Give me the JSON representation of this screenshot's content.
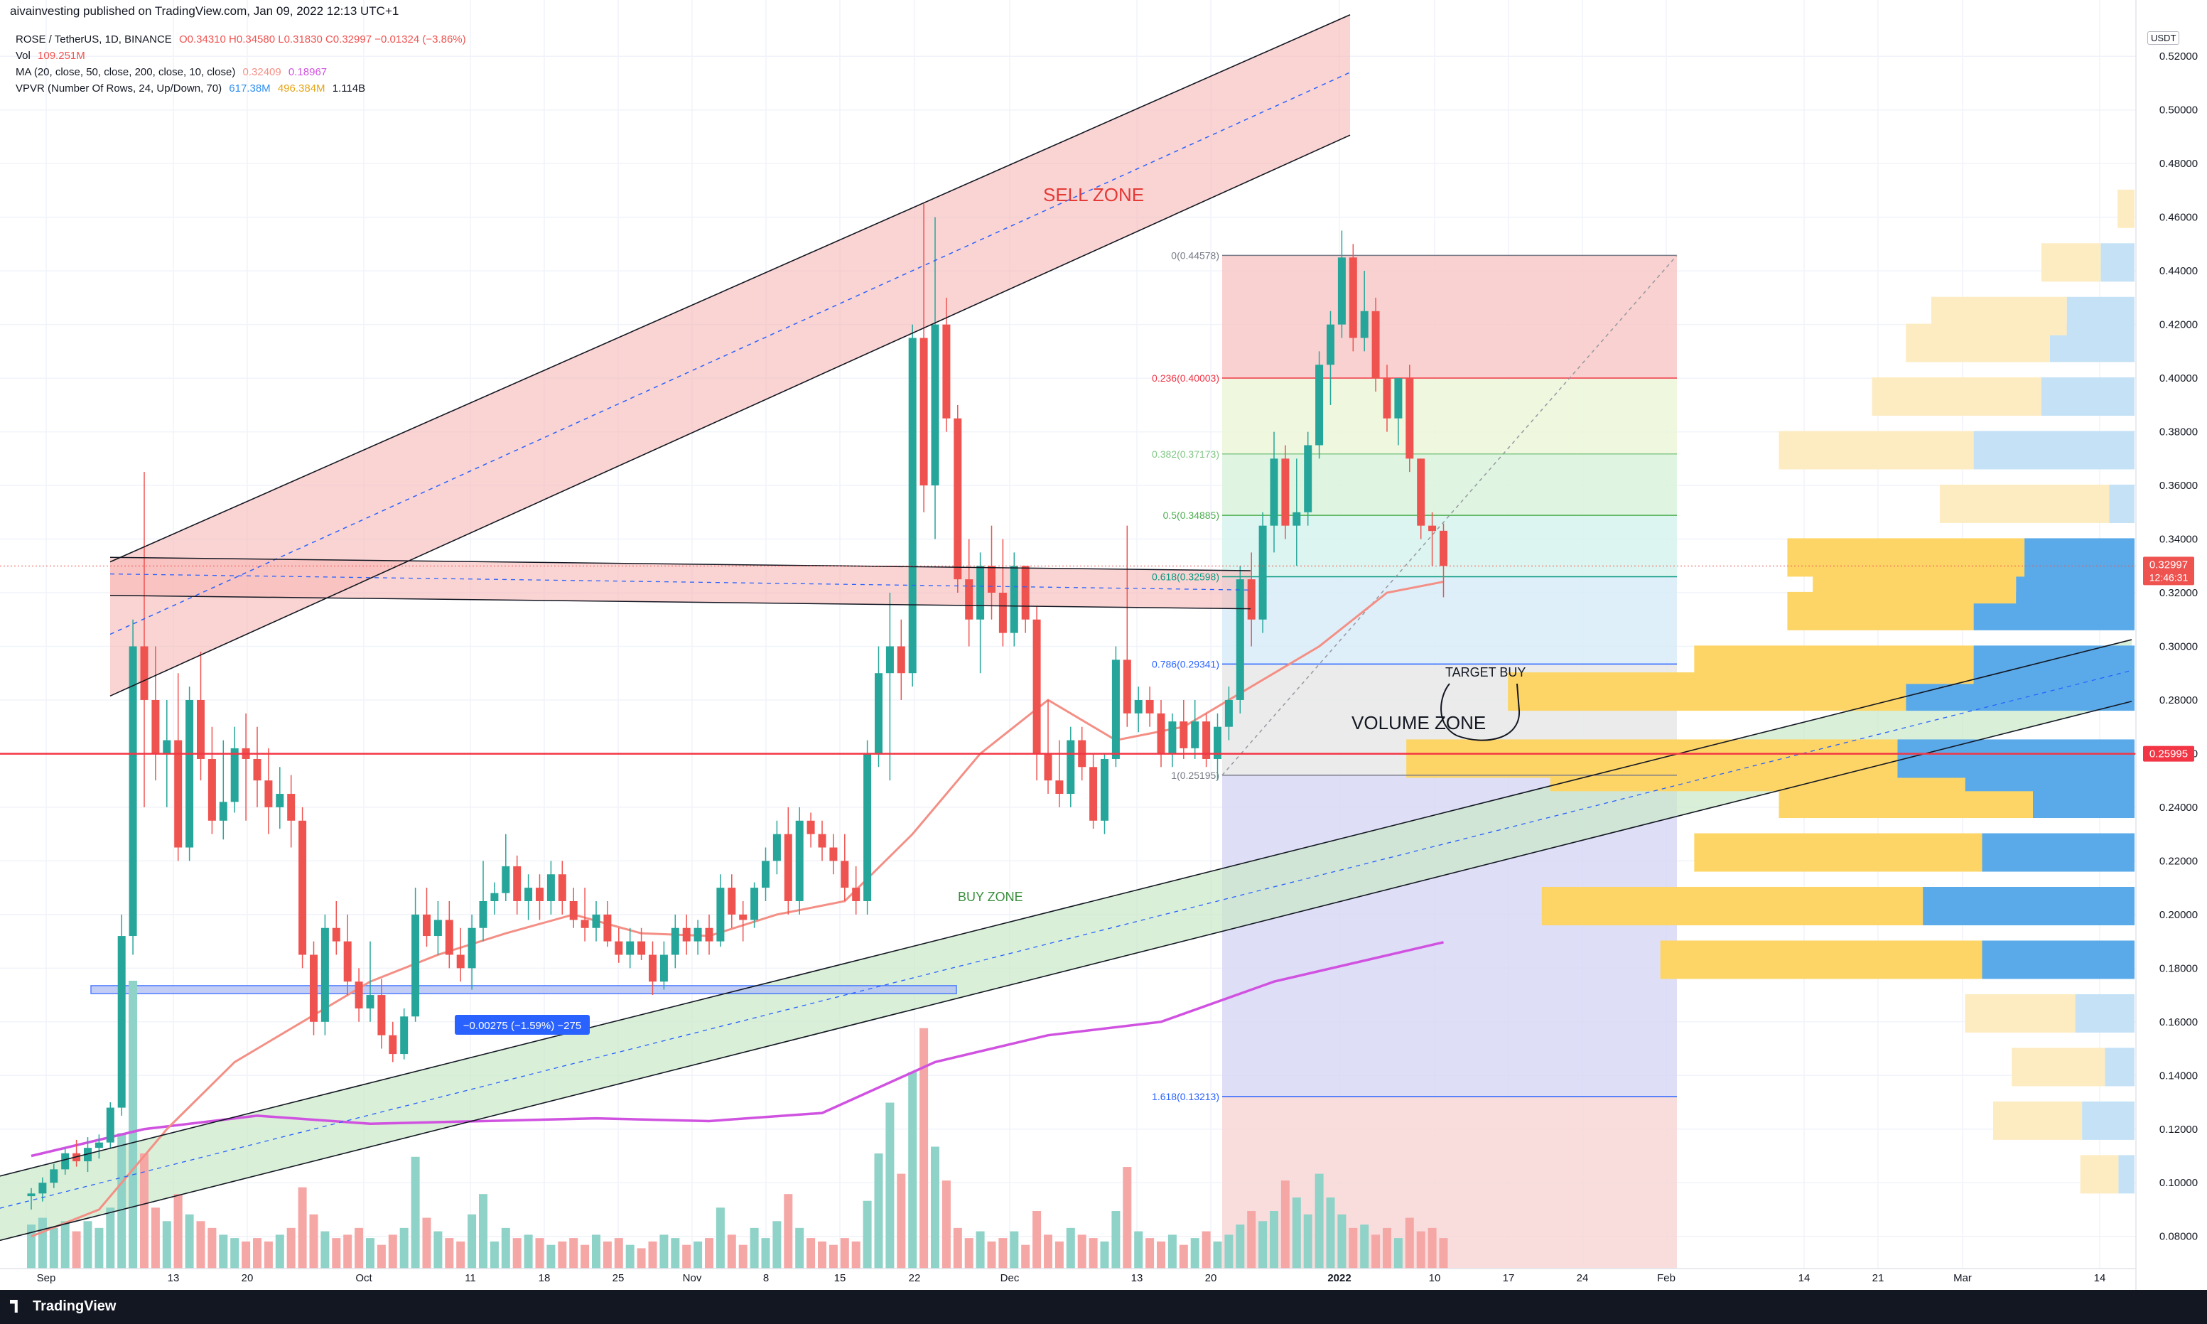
{
  "header": {
    "published": "aivainvesting published on TradingView.com, Jan 09, 2022 12:13 UTC+1"
  },
  "legend": {
    "symbol": "ROSE / TetherUS, 1D, BINANCE",
    "ohlc": "O0.34310  H0.34580  L0.31830  C0.32997  −0.01324 (−3.86%)",
    "vol_label": "Vol",
    "vol_value": "109.251M",
    "ma_label": "MA (20, close, 50, close, 200, close, 10, close)",
    "ma_v1": "0.32409",
    "ma_v2": "0.18967",
    "vpvr_label": "VPVR (Number Of Rows, 24, Up/Down, 70)",
    "vpvr_v1": "617.38M",
    "vpvr_v2": "496.384M",
    "vpvr_v3": "1.114B"
  },
  "currency": "USDT",
  "footer": {
    "brand": "TradingView"
  },
  "chart_data": {
    "type": "candlestick",
    "y_range": [
      0.068,
      0.541
    ],
    "price_ticks": [
      "0.08000",
      "0.10000",
      "0.12000",
      "0.14000",
      "0.16000",
      "0.18000",
      "0.20000",
      "0.22000",
      "0.24000",
      "0.26000",
      "0.28000",
      "0.30000",
      "0.32000",
      "0.34000",
      "0.36000",
      "0.38000",
      "0.40000",
      "0.42000",
      "0.44000",
      "0.46000",
      "0.48000",
      "0.50000",
      "0.52000"
    ],
    "time_labels": [
      "Sep",
      "13",
      "20",
      "Oct",
      "11",
      "18",
      "25",
      "Nov",
      "8",
      "15",
      "22",
      "Dec",
      "13",
      "20",
      "2022",
      "10",
      "17",
      "24",
      "Feb",
      "14",
      "21",
      "Mar",
      "14"
    ],
    "last_price": {
      "value": 0.32997,
      "label": "0.32997",
      "countdown": "12:46:31",
      "color": "#ef5350"
    },
    "hline": {
      "value": 0.25995,
      "label": "0.25995",
      "color": "#f23645"
    },
    "candles": [
      [
        0.095,
        0.098,
        0.09,
        0.096
      ],
      [
        0.096,
        0.102,
        0.093,
        0.1
      ],
      [
        0.1,
        0.107,
        0.098,
        0.105
      ],
      [
        0.105,
        0.113,
        0.103,
        0.111
      ],
      [
        0.111,
        0.116,
        0.106,
        0.108
      ],
      [
        0.108,
        0.117,
        0.104,
        0.113
      ],
      [
        0.113,
        0.118,
        0.109,
        0.115
      ],
      [
        0.115,
        0.13,
        0.113,
        0.128
      ],
      [
        0.128,
        0.2,
        0.125,
        0.192
      ],
      [
        0.192,
        0.31,
        0.185,
        0.3
      ],
      [
        0.3,
        0.365,
        0.24,
        0.28
      ],
      [
        0.28,
        0.3,
        0.25,
        0.26
      ],
      [
        0.26,
        0.28,
        0.24,
        0.265
      ],
      [
        0.265,
        0.29,
        0.22,
        0.225
      ],
      [
        0.225,
        0.285,
        0.22,
        0.28
      ],
      [
        0.28,
        0.298,
        0.25,
        0.258
      ],
      [
        0.258,
        0.27,
        0.23,
        0.235
      ],
      [
        0.235,
        0.265,
        0.228,
        0.242
      ],
      [
        0.242,
        0.27,
        0.238,
        0.262
      ],
      [
        0.262,
        0.275,
        0.235,
        0.258
      ],
      [
        0.258,
        0.27,
        0.24,
        0.25
      ],
      [
        0.25,
        0.262,
        0.23,
        0.24
      ],
      [
        0.24,
        0.255,
        0.232,
        0.245
      ],
      [
        0.245,
        0.252,
        0.225,
        0.235
      ],
      [
        0.235,
        0.24,
        0.18,
        0.185
      ],
      [
        0.185,
        0.19,
        0.155,
        0.16
      ],
      [
        0.16,
        0.2,
        0.155,
        0.195
      ],
      [
        0.195,
        0.205,
        0.185,
        0.19
      ],
      [
        0.19,
        0.2,
        0.17,
        0.175
      ],
      [
        0.175,
        0.18,
        0.16,
        0.165
      ],
      [
        0.165,
        0.19,
        0.16,
        0.17
      ],
      [
        0.17,
        0.176,
        0.15,
        0.155
      ],
      [
        0.155,
        0.16,
        0.145,
        0.148
      ],
      [
        0.148,
        0.165,
        0.146,
        0.162
      ],
      [
        0.162,
        0.21,
        0.16,
        0.2
      ],
      [
        0.2,
        0.21,
        0.188,
        0.192
      ],
      [
        0.192,
        0.205,
        0.185,
        0.198
      ],
      [
        0.198,
        0.205,
        0.18,
        0.185
      ],
      [
        0.185,
        0.195,
        0.175,
        0.18
      ],
      [
        0.18,
        0.2,
        0.172,
        0.195
      ],
      [
        0.195,
        0.22,
        0.19,
        0.205
      ],
      [
        0.205,
        0.212,
        0.2,
        0.208
      ],
      [
        0.208,
        0.23,
        0.205,
        0.218
      ],
      [
        0.218,
        0.222,
        0.2,
        0.205
      ],
      [
        0.205,
        0.215,
        0.198,
        0.21
      ],
      [
        0.21,
        0.215,
        0.198,
        0.205
      ],
      [
        0.205,
        0.22,
        0.2,
        0.215
      ],
      [
        0.215,
        0.22,
        0.2,
        0.205
      ],
      [
        0.205,
        0.21,
        0.195,
        0.198
      ],
      [
        0.198,
        0.21,
        0.19,
        0.195
      ],
      [
        0.195,
        0.205,
        0.19,
        0.2
      ],
      [
        0.2,
        0.205,
        0.188,
        0.19
      ],
      [
        0.19,
        0.195,
        0.182,
        0.185
      ],
      [
        0.185,
        0.195,
        0.18,
        0.19
      ],
      [
        0.19,
        0.195,
        0.183,
        0.185
      ],
      [
        0.185,
        0.19,
        0.17,
        0.175
      ],
      [
        0.175,
        0.19,
        0.172,
        0.185
      ],
      [
        0.185,
        0.2,
        0.18,
        0.195
      ],
      [
        0.195,
        0.2,
        0.185,
        0.19
      ],
      [
        0.19,
        0.198,
        0.185,
        0.195
      ],
      [
        0.195,
        0.2,
        0.185,
        0.19
      ],
      [
        0.19,
        0.215,
        0.188,
        0.21
      ],
      [
        0.21,
        0.215,
        0.195,
        0.2
      ],
      [
        0.2,
        0.205,
        0.19,
        0.198
      ],
      [
        0.198,
        0.212,
        0.195,
        0.21
      ],
      [
        0.21,
        0.225,
        0.205,
        0.22
      ],
      [
        0.22,
        0.235,
        0.215,
        0.23
      ],
      [
        0.23,
        0.24,
        0.2,
        0.205
      ],
      [
        0.205,
        0.24,
        0.2,
        0.235
      ],
      [
        0.235,
        0.238,
        0.225,
        0.23
      ],
      [
        0.23,
        0.235,
        0.22,
        0.225
      ],
      [
        0.225,
        0.23,
        0.215,
        0.22
      ],
      [
        0.22,
        0.23,
        0.205,
        0.21
      ],
      [
        0.21,
        0.218,
        0.2,
        0.205
      ],
      [
        0.205,
        0.265,
        0.2,
        0.26
      ],
      [
        0.26,
        0.3,
        0.255,
        0.29
      ],
      [
        0.29,
        0.32,
        0.25,
        0.3
      ],
      [
        0.3,
        0.31,
        0.28,
        0.29
      ],
      [
        0.29,
        0.42,
        0.285,
        0.415
      ],
      [
        0.415,
        0.465,
        0.35,
        0.36
      ],
      [
        0.36,
        0.46,
        0.34,
        0.42
      ],
      [
        0.42,
        0.43,
        0.38,
        0.385
      ],
      [
        0.385,
        0.39,
        0.32,
        0.325
      ],
      [
        0.325,
        0.34,
        0.3,
        0.31
      ],
      [
        0.31,
        0.335,
        0.29,
        0.33
      ],
      [
        0.33,
        0.345,
        0.31,
        0.32
      ],
      [
        0.32,
        0.34,
        0.3,
        0.305
      ],
      [
        0.305,
        0.335,
        0.3,
        0.33
      ],
      [
        0.33,
        0.33,
        0.305,
        0.31
      ],
      [
        0.31,
        0.315,
        0.25,
        0.26
      ],
      [
        0.26,
        0.28,
        0.245,
        0.25
      ],
      [
        0.25,
        0.265,
        0.24,
        0.245
      ],
      [
        0.245,
        0.27,
        0.24,
        0.265
      ],
      [
        0.265,
        0.27,
        0.25,
        0.255
      ],
      [
        0.255,
        0.26,
        0.232,
        0.235
      ],
      [
        0.235,
        0.26,
        0.23,
        0.258
      ],
      [
        0.258,
        0.3,
        0.255,
        0.295
      ],
      [
        0.295,
        0.345,
        0.27,
        0.275
      ],
      [
        0.275,
        0.285,
        0.268,
        0.28
      ],
      [
        0.28,
        0.285,
        0.27,
        0.275
      ],
      [
        0.275,
        0.28,
        0.255,
        0.26
      ],
      [
        0.26,
        0.275,
        0.255,
        0.272
      ],
      [
        0.272,
        0.28,
        0.258,
        0.262
      ],
      [
        0.262,
        0.28,
        0.258,
        0.272
      ],
      [
        0.272,
        0.275,
        0.255,
        0.258
      ],
      [
        0.258,
        0.275,
        0.25,
        0.27
      ],
      [
        0.27,
        0.285,
        0.265,
        0.28
      ],
      [
        0.28,
        0.33,
        0.275,
        0.325
      ],
      [
        0.325,
        0.335,
        0.3,
        0.31
      ],
      [
        0.31,
        0.35,
        0.305,
        0.345
      ],
      [
        0.345,
        0.38,
        0.335,
        0.37
      ],
      [
        0.37,
        0.375,
        0.34,
        0.345
      ],
      [
        0.345,
        0.37,
        0.33,
        0.35
      ],
      [
        0.35,
        0.38,
        0.345,
        0.375
      ],
      [
        0.375,
        0.41,
        0.37,
        0.405
      ],
      [
        0.405,
        0.425,
        0.39,
        0.42
      ],
      [
        0.42,
        0.455,
        0.415,
        0.445
      ],
      [
        0.445,
        0.45,
        0.41,
        0.415
      ],
      [
        0.415,
        0.44,
        0.41,
        0.425
      ],
      [
        0.425,
        0.43,
        0.395,
        0.4
      ],
      [
        0.4,
        0.405,
        0.38,
        0.385
      ],
      [
        0.385,
        0.4,
        0.375,
        0.4
      ],
      [
        0.4,
        0.405,
        0.365,
        0.37
      ],
      [
        0.37,
        0.37,
        0.34,
        0.345
      ],
      [
        0.345,
        0.35,
        0.33,
        0.343
      ],
      [
        0.3431,
        0.3458,
        0.3183,
        0.32997
      ]
    ],
    "volumes": [
      13,
      15,
      12,
      14,
      11,
      14,
      12,
      18,
      40,
      85,
      34,
      18,
      14,
      22,
      16,
      14,
      12,
      10,
      9,
      8,
      9,
      8,
      10,
      12,
      24,
      16,
      11,
      9,
      10,
      12,
      9,
      7,
      10,
      12,
      33,
      15,
      11,
      9,
      8,
      16,
      22,
      8,
      12,
      9,
      10,
      9,
      7,
      8,
      9,
      7,
      10,
      8,
      9,
      7,
      6,
      8,
      10,
      9,
      7,
      8,
      9,
      18,
      10,
      7,
      12,
      9,
      14,
      22,
      12,
      9,
      8,
      7,
      9,
      8,
      20,
      34,
      49,
      28,
      58,
      71,
      36,
      26,
      12,
      9,
      11,
      8,
      9,
      11,
      7,
      17,
      10,
      8,
      12,
      10,
      9,
      8,
      17,
      30,
      11,
      9,
      8,
      10,
      7,
      9,
      11,
      8,
      10,
      13,
      17,
      14,
      17,
      26,
      21,
      16,
      28,
      21,
      16,
      12,
      13,
      10,
      12,
      9,
      15,
      11,
      12,
      9
    ],
    "ma_20": [
      [
        0,
        0.08
      ],
      [
        6,
        0.09
      ],
      [
        12,
        0.12
      ],
      [
        18,
        0.145
      ],
      [
        24,
        0.16
      ],
      [
        30,
        0.175
      ],
      [
        36,
        0.185
      ],
      [
        42,
        0.193
      ],
      [
        48,
        0.2
      ],
      [
        54,
        0.193
      ],
      [
        60,
        0.192
      ],
      [
        66,
        0.2
      ],
      [
        72,
        0.205
      ],
      [
        78,
        0.23
      ],
      [
        84,
        0.26
      ],
      [
        90,
        0.28
      ],
      [
        96,
        0.265
      ],
      [
        102,
        0.27
      ],
      [
        108,
        0.285
      ],
      [
        114,
        0.3
      ],
      [
        120,
        0.32
      ],
      [
        125,
        0.32409
      ]
    ],
    "ma_200": [
      [
        0,
        0.11
      ],
      [
        10,
        0.12
      ],
      [
        20,
        0.125
      ],
      [
        30,
        0.122
      ],
      [
        40,
        0.123
      ],
      [
        50,
        0.124
      ],
      [
        60,
        0.123
      ],
      [
        70,
        0.126
      ],
      [
        80,
        0.145
      ],
      [
        90,
        0.155
      ],
      [
        100,
        0.16
      ],
      [
        110,
        0.175
      ],
      [
        125,
        0.18967
      ]
    ],
    "fib_levels": [
      {
        "label": "0(0.44578)",
        "value": 0.44578
      },
      {
        "label": "0.236(0.40003)",
        "value": 0.40003
      },
      {
        "label": "0.382(0.37173)",
        "value": 0.37173
      },
      {
        "label": "0.5(0.34885)",
        "value": 0.34885
      },
      {
        "label": "0.618(0.32598)",
        "value": 0.32598
      },
      {
        "label": "0.786(0.29341)",
        "value": 0.29341
      },
      {
        "label": "1(0.25195)",
        "value": 0.25195
      },
      {
        "label": "1.618(0.13213)",
        "value": 0.13213
      }
    ],
    "annotations": {
      "sell_zone": "SELL ZONE",
      "buy_zone": "BUY ZONE",
      "volume_zone": "VOLUME ZONE",
      "target_buy": "TARGET BUY",
      "measure": "−0.00275 (−1.59%) −275"
    },
    "vpvr_rows": [
      {
        "price": 0.08,
        "up": 0.0,
        "down": 0.0
      },
      {
        "price": 0.105,
        "up": 0.045,
        "down": 0.019
      },
      {
        "price": 0.125,
        "up": 0.105,
        "down": 0.062
      },
      {
        "price": 0.145,
        "up": 0.11,
        "down": 0.035
      },
      {
        "price": 0.165,
        "up": 0.13,
        "down": 0.07
      },
      {
        "price": 0.185,
        "up": 0.38,
        "down": 0.18
      },
      {
        "price": 0.205,
        "up": 0.45,
        "down": 0.25
      },
      {
        "price": 0.225,
        "up": 0.34,
        "down": 0.18
      },
      {
        "price": 0.245,
        "up": 0.3,
        "down": 0.12
      },
      {
        "price": 0.255,
        "up": 0.49,
        "down": 0.2
      },
      {
        "price": 0.26,
        "up": 0.58,
        "down": 0.28
      },
      {
        "price": 0.285,
        "up": 0.47,
        "down": 0.27
      },
      {
        "price": 0.295,
        "up": 0.33,
        "down": 0.19
      },
      {
        "price": 0.315,
        "up": 0.22,
        "down": 0.19
      },
      {
        "price": 0.325,
        "up": 0.24,
        "down": 0.14
      },
      {
        "price": 0.335,
        "up": 0.28,
        "down": 0.13
      },
      {
        "price": 0.355,
        "up": 0.2,
        "down": 0.03
      },
      {
        "price": 0.375,
        "up": 0.23,
        "down": 0.19
      },
      {
        "price": 0.395,
        "up": 0.2,
        "down": 0.11
      },
      {
        "price": 0.415,
        "up": 0.17,
        "down": 0.1
      },
      {
        "price": 0.425,
        "up": 0.16,
        "down": 0.08
      },
      {
        "price": 0.445,
        "up": 0.07,
        "down": 0.04
      },
      {
        "price": 0.465,
        "up": 0.02,
        "down": 0.0
      }
    ]
  }
}
